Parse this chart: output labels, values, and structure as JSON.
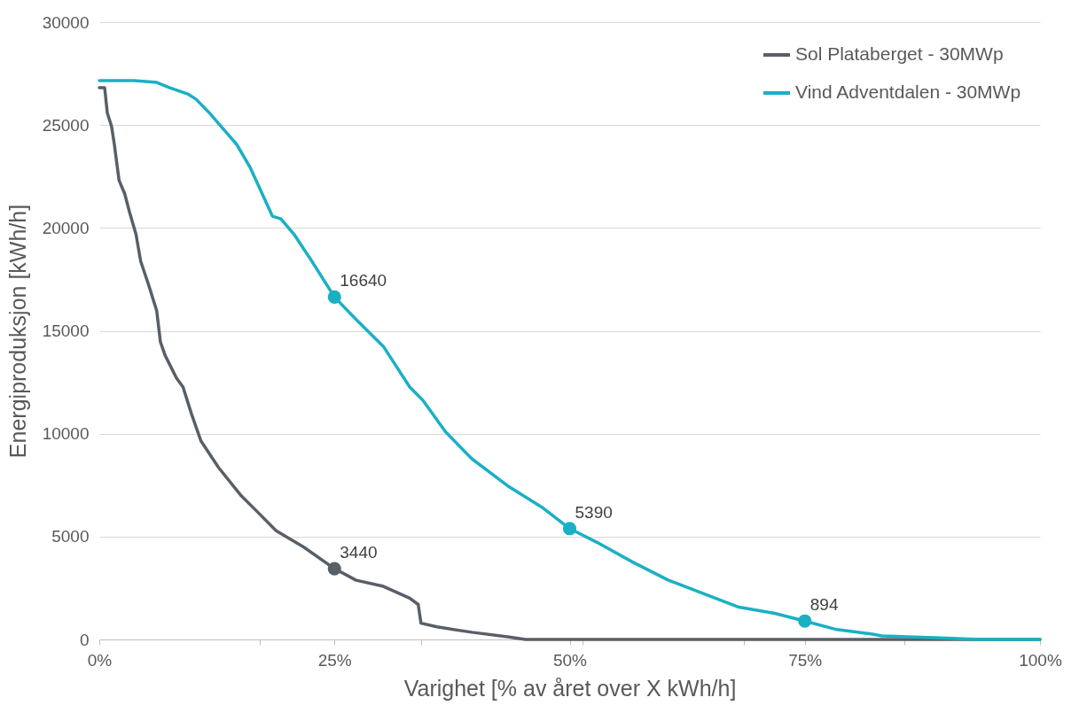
{
  "chart_data": {
    "type": "line",
    "xlabel": "Varighet [% av året over X kWh/h]",
    "ylabel": "Energiproduksjon [kWh/h]",
    "xlim": [
      0,
      100
    ],
    "xticks": [
      {
        "value": 0,
        "label": "0%"
      },
      {
        "value": 17.1,
        "label": null
      },
      {
        "value": 25,
        "label": "25%"
      },
      {
        "value": 34.2,
        "label": null
      },
      {
        "value": 50,
        "label": "50%"
      },
      {
        "value": 51.4,
        "label": null
      },
      {
        "value": 68.5,
        "label": null
      },
      {
        "value": 75,
        "label": "75%"
      },
      {
        "value": 85.6,
        "label": null
      },
      {
        "value": 100,
        "label": "100%"
      }
    ],
    "ylim": [
      0,
      30000
    ],
    "yticks": [
      0,
      5000,
      10000,
      15000,
      20000,
      25000,
      30000
    ],
    "grid": "y",
    "legend": "top right",
    "series": [
      {
        "name": "Sol Plataberget - 30MWp",
        "color": "#595f66",
        "x": [
          0,
          0.57,
          0.85,
          1.3,
          1.6,
          2.1,
          2.7,
          3.2,
          3.9,
          4.4,
          5.2,
          6.1,
          6.5,
          7.0,
          8.2,
          8.9,
          9.8,
          10.8,
          12.7,
          15.0,
          16.9,
          18.8,
          21.7,
          25,
          27.3,
          30.2,
          33.0,
          33.9,
          34.2,
          35.9,
          39.6,
          43.4,
          45.3,
          100
        ],
        "values": [
          26810,
          26810,
          25590,
          24940,
          24060,
          22310,
          21660,
          20790,
          19690,
          18380,
          17290,
          15980,
          14450,
          13800,
          12710,
          12270,
          10960,
          9650,
          8340,
          7030,
          6160,
          5280,
          4500,
          3440,
          2880,
          2580,
          2010,
          1700,
          790,
          610,
          350,
          130,
          0,
          0
        ]
      },
      {
        "name": "Vind Adventdalen - 30MWp",
        "color": "#1ab0c4",
        "x": [
          0,
          3.7,
          6.1,
          7.5,
          9.4,
          10.3,
          11.7,
          13.2,
          14.6,
          16.0,
          17.1,
          18.4,
          19.3,
          20.7,
          22.6,
          25,
          27.3,
          30.2,
          33.0,
          34.4,
          36.8,
          39.6,
          43.4,
          47.2,
          50,
          52.9,
          56.7,
          60.5,
          64.2,
          68.0,
          71.8,
          75,
          78.4,
          82.2,
          83.2,
          88.8,
          93.6,
          100
        ],
        "values": [
          27160,
          27160,
          27070,
          26810,
          26510,
          26250,
          25590,
          24800,
          24060,
          22970,
          21880,
          20570,
          20440,
          19690,
          18380,
          16640,
          15550,
          14240,
          12270,
          11620,
          10090,
          8780,
          7470,
          6380,
          5390,
          4720,
          3760,
          2880,
          2230,
          1570,
          1270,
          894,
          480,
          260,
          170,
          90,
          0,
          0
        ]
      },
      {
        "type": "scatter",
        "color": "#595f66",
        "x": [
          25
        ],
        "values": [
          3440
        ],
        "value_labels": [
          "3440"
        ]
      },
      {
        "type": "scatter",
        "color": "#1ab0c4",
        "x": [
          25,
          50,
          75
        ],
        "values": [
          16640,
          5390,
          894
        ],
        "value_labels": [
          "16640",
          "5390",
          "894"
        ]
      }
    ]
  }
}
